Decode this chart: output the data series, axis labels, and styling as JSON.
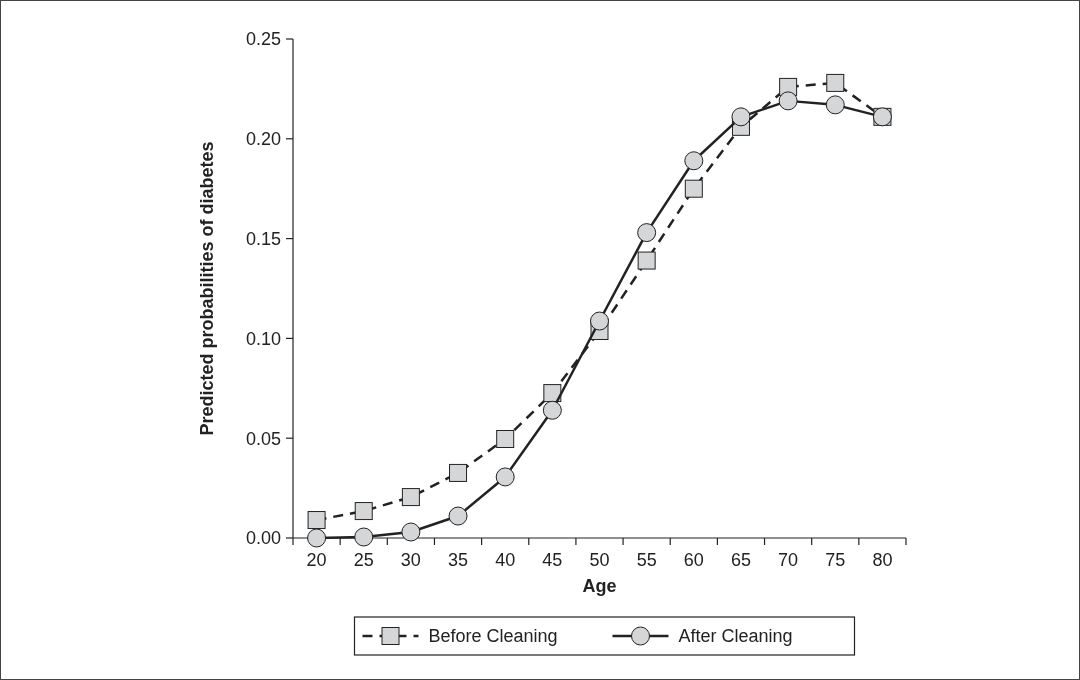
{
  "chart_data": {
    "type": "line",
    "xlabel": "Age",
    "ylabel": "Predicted probabilities of diabetes",
    "categories": [
      "20",
      "25",
      "30",
      "35",
      "40",
      "45",
      "50",
      "55",
      "60",
      "65",
      "70",
      "75",
      "80"
    ],
    "series": [
      {
        "name": "Before Cleaning",
        "color": "#222222",
        "marker": "square",
        "line_style": "dashed",
        "values": [
          0.009,
          0.0135,
          0.0205,
          0.0326,
          0.0496,
          0.0726,
          0.1037,
          0.139,
          0.175,
          0.206,
          0.226,
          0.228,
          0.211
        ]
      },
      {
        "name": "After Cleaning",
        "color": "#222222",
        "marker": "circle",
        "line_style": "solid",
        "values": [
          0,
          0.0005,
          0.003,
          0.011,
          0.0306,
          0.064,
          0.1087,
          0.153,
          0.189,
          0.211,
          0.219,
          0.217,
          0.211
        ]
      }
    ],
    "ylim": [
      0,
      0.25
    ],
    "yticks": [
      {
        "value": 0,
        "label": "0.00"
      },
      {
        "value": 0.05,
        "label": "0.05"
      },
      {
        "value": 0.1,
        "label": "0.10"
      },
      {
        "value": 0.15,
        "label": "0.15"
      },
      {
        "value": 0.2,
        "label": "0.20"
      },
      {
        "value": 0.25,
        "label": "0.25"
      }
    ],
    "grid": false,
    "legend": "bottom"
  }
}
